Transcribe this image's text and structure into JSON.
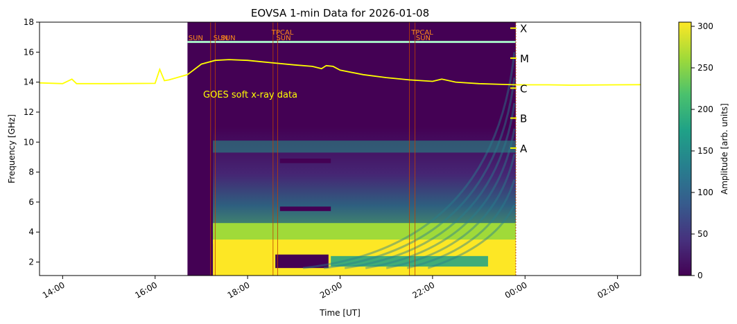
{
  "chart_data": {
    "type": "heatmap",
    "title": "EOVSA 1-min Data for 2026-01-08",
    "xlabel": "Time [UT]",
    "ylabel": "Frequency [GHz]",
    "xlim_hours": [
      13.5,
      26.5
    ],
    "ylim": [
      1.1,
      18
    ],
    "x_ticks": [
      {
        "h": 14,
        "label": "14:00"
      },
      {
        "h": 16,
        "label": "16:00"
      },
      {
        "h": 18,
        "label": "18:00"
      },
      {
        "h": 20,
        "label": "20:00"
      },
      {
        "h": 22,
        "label": "22:00"
      },
      {
        "h": 24,
        "label": "00:00"
      },
      {
        "h": 26,
        "label": "02:00"
      }
    ],
    "y_ticks": [
      2,
      4,
      6,
      8,
      10,
      12,
      14,
      16,
      18
    ],
    "data_window_hours": [
      16.7,
      23.8
    ],
    "colorbar": {
      "label": "Amplitude [arb. units]",
      "range": [
        0,
        305
      ],
      "ticks": [
        0,
        50,
        100,
        150,
        200,
        250,
        300
      ],
      "colors": [
        "#440154",
        "#46327e",
        "#365c8d",
        "#277f8e",
        "#1fa187",
        "#4ac16d",
        "#a0da39",
        "#fde725"
      ]
    },
    "goes": {
      "label": "GOES soft x-ray data",
      "color": "#ffff00",
      "classes": [
        {
          "name": "X",
          "y": 17.6
        },
        {
          "name": "M",
          "y": 15.6
        },
        {
          "name": "C",
          "y": 13.6
        },
        {
          "name": "B",
          "y": 11.6
        },
        {
          "name": "A",
          "y": 9.6
        }
      ],
      "x": [
        13.5,
        14.0,
        14.2,
        14.3,
        15.0,
        16.0,
        16.1,
        16.2,
        16.3,
        16.7,
        17.0,
        17.3,
        17.6,
        18.0,
        18.5,
        19.0,
        19.4,
        19.6,
        19.7,
        19.85,
        20.0,
        20.5,
        21.0,
        21.5,
        22.0,
        22.2,
        22.5,
        23.0,
        23.5,
        23.8,
        24.5,
        25.0,
        26.0,
        26.5
      ],
      "y": [
        13.95,
        13.9,
        14.2,
        13.9,
        13.9,
        13.92,
        14.85,
        14.1,
        14.15,
        14.5,
        15.2,
        15.45,
        15.5,
        15.45,
        15.3,
        15.15,
        15.05,
        14.9,
        15.1,
        15.05,
        14.8,
        14.5,
        14.3,
        14.15,
        14.05,
        14.2,
        14.0,
        13.9,
        13.85,
        13.82,
        13.82,
        13.8,
        13.82,
        13.83
      ]
    },
    "annotations": [
      {
        "text": "SUN",
        "h": 16.72
      },
      {
        "text": "SUN",
        "h": 17.26
      },
      {
        "text": "SUN",
        "h": 17.42
      },
      {
        "text": "TPCAL",
        "h": 18.52
      },
      {
        "text": "SUN",
        "h": 18.62
      },
      {
        "text": "TPCAL",
        "h": 21.54
      },
      {
        "text": "SUN",
        "h": 21.64
      }
    ],
    "cal_lines_hours": [
      17.2,
      17.3,
      18.55,
      18.65,
      21.5,
      21.62
    ]
  }
}
